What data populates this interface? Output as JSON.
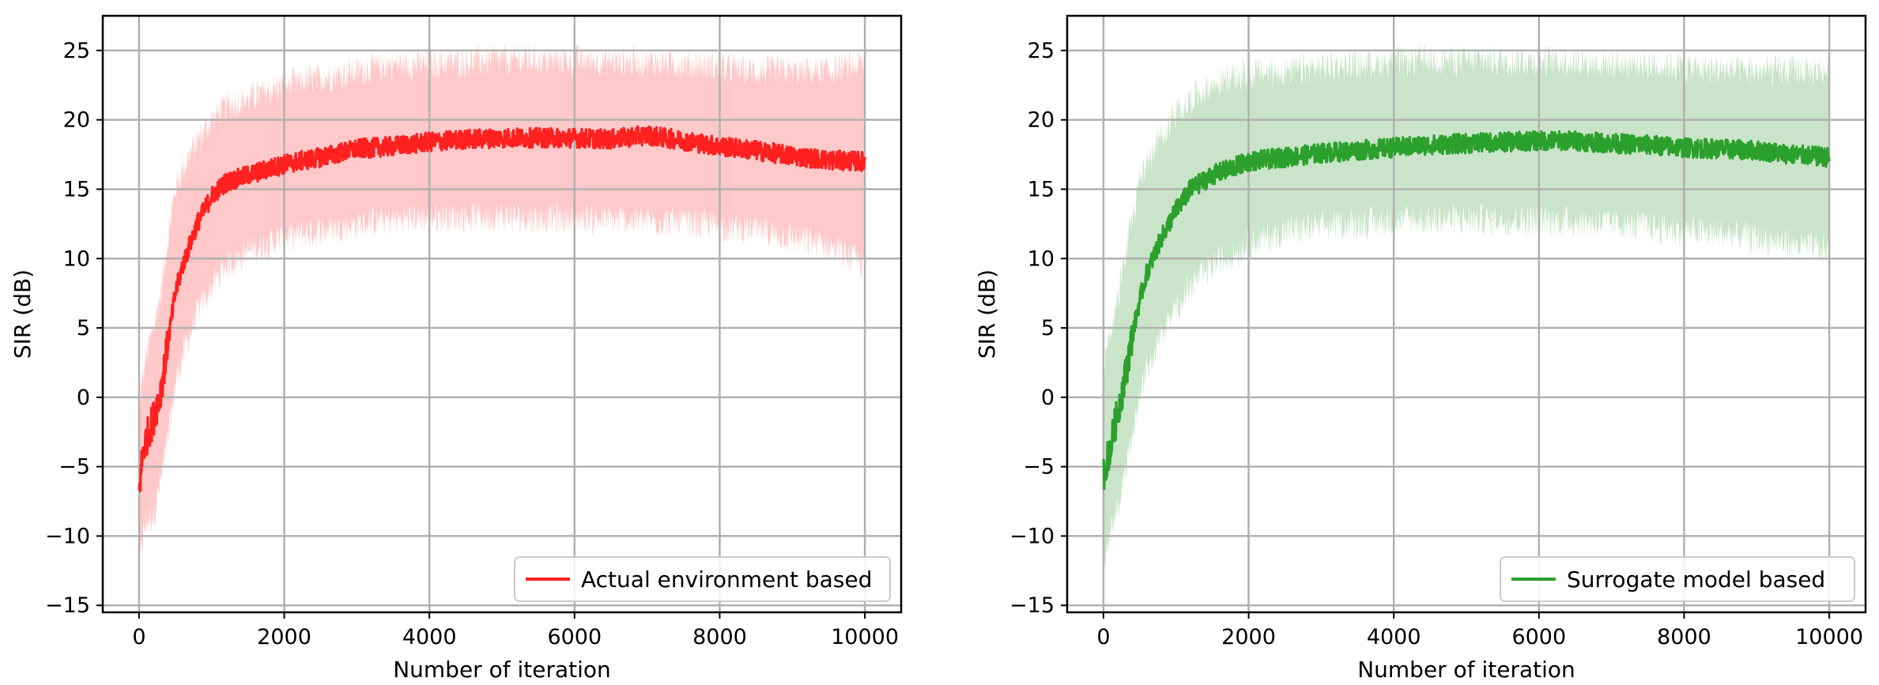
{
  "chart_data": [
    {
      "type": "line",
      "title": "",
      "xlabel": "Number of iteration",
      "ylabel": "SIR (dB)",
      "xlim": [
        -500,
        10500
      ],
      "ylim": [
        -15.5,
        27.5
      ],
      "xticks": [
        0,
        2000,
        4000,
        6000,
        8000,
        10000
      ],
      "yticks": [
        -15,
        -10,
        -5,
        0,
        5,
        10,
        15,
        20,
        25
      ],
      "grid": true,
      "legend_position": "lower-right",
      "color": "#ff2020",
      "band_color": "#ffc9c9",
      "series": [
        {
          "name": "Actual environment based",
          "x": [
            0,
            50,
            100,
            200,
            300,
            400,
            500,
            600,
            800,
            1000,
            1200,
            1500,
            2000,
            2500,
            3000,
            3500,
            4000,
            4500,
            5000,
            5500,
            6000,
            6500,
            7000,
            7500,
            8000,
            8500,
            9000,
            9500,
            10000
          ],
          "mean": [
            -7.0,
            -4.0,
            -3.0,
            -1.5,
            0.5,
            4.0,
            7.5,
            9.5,
            12.5,
            14.5,
            15.5,
            16.0,
            16.8,
            17.3,
            17.9,
            18.1,
            18.4,
            18.6,
            18.7,
            18.7,
            18.7,
            18.6,
            18.9,
            18.5,
            18.1,
            17.8,
            17.4,
            17.1,
            17.0
          ],
          "upper": [
            -1.0,
            1.5,
            3.0,
            5.0,
            7.5,
            11.5,
            15.0,
            16.5,
            18.5,
            20.0,
            21.0,
            21.5,
            22.5,
            23.0,
            23.5,
            24.0,
            24.0,
            24.2,
            24.3,
            24.3,
            24.3,
            24.2,
            24.2,
            24.0,
            23.8,
            23.5,
            23.5,
            23.5,
            24.0
          ],
          "lower": [
            -12.5,
            -10.0,
            -9.0,
            -8.5,
            -6.0,
            -3.0,
            1.0,
            3.0,
            6.0,
            8.0,
            9.5,
            10.5,
            11.5,
            12.0,
            12.5,
            12.8,
            13.0,
            13.0,
            13.0,
            12.9,
            12.9,
            12.8,
            12.7,
            12.6,
            12.3,
            12.0,
            11.5,
            11.0,
            9.5
          ]
        }
      ]
    },
    {
      "type": "line",
      "title": "",
      "xlabel": "Number of iteration",
      "ylabel": "SIR (dB)",
      "xlim": [
        -500,
        10500
      ],
      "ylim": [
        -15.5,
        27.5
      ],
      "xticks": [
        0,
        2000,
        4000,
        6000,
        8000,
        10000
      ],
      "yticks": [
        -15,
        -10,
        -5,
        0,
        5,
        10,
        15,
        20,
        25
      ],
      "grid": true,
      "legend_position": "lower-right",
      "color": "#2ca02c",
      "band_color": "#c9e4c9",
      "series": [
        {
          "name": "Surrogate model based",
          "x": [
            0,
            50,
            100,
            200,
            300,
            400,
            500,
            600,
            800,
            1000,
            1200,
            1500,
            2000,
            2500,
            3000,
            3500,
            4000,
            4500,
            5000,
            5500,
            6000,
            6500,
            7000,
            7500,
            8000,
            8500,
            9000,
            9500,
            10000
          ],
          "mean": [
            -5.5,
            -4.5,
            -3.5,
            -1.0,
            1.5,
            4.5,
            7.0,
            9.0,
            11.5,
            13.5,
            15.0,
            16.0,
            17.0,
            17.3,
            17.6,
            17.8,
            18.0,
            18.2,
            18.3,
            18.4,
            18.5,
            18.5,
            18.3,
            18.2,
            18.0,
            17.9,
            17.8,
            17.5,
            17.3
          ],
          "upper": [
            2.5,
            3.5,
            4.5,
            7.5,
            10.0,
            13.0,
            15.5,
            17.0,
            19.0,
            20.5,
            21.5,
            22.5,
            23.3,
            23.5,
            23.8,
            24.0,
            24.2,
            24.3,
            24.3,
            24.3,
            24.3,
            24.2,
            24.0,
            24.0,
            23.8,
            23.6,
            23.5,
            23.5,
            23.5
          ],
          "lower": [
            -12.5,
            -10.5,
            -9.5,
            -8.0,
            -5.5,
            -2.5,
            0.0,
            2.0,
            4.5,
            6.5,
            8.0,
            9.5,
            11.0,
            12.0,
            12.3,
            12.5,
            12.7,
            12.8,
            12.8,
            12.8,
            12.7,
            12.7,
            12.5,
            12.3,
            12.0,
            11.8,
            11.5,
            11.0,
            10.5
          ]
        }
      ]
    }
  ]
}
